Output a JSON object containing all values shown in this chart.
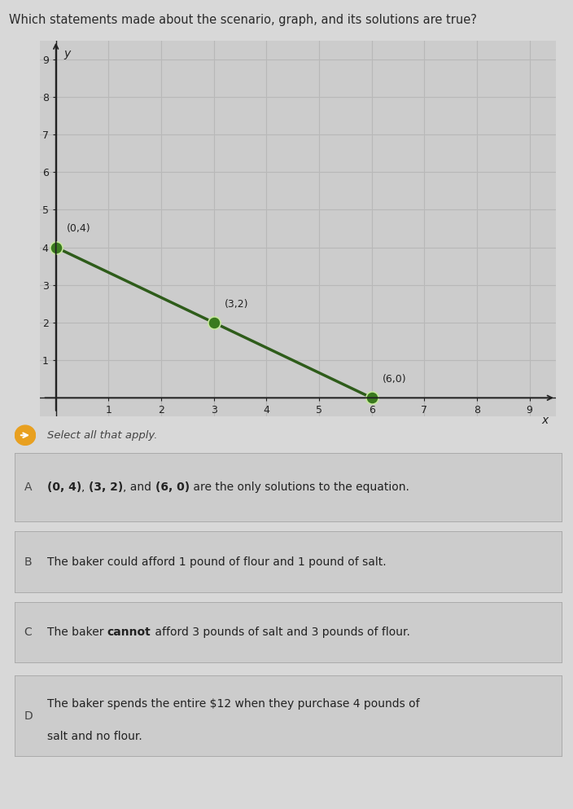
{
  "title": "Which statements made about the scenario, graph, and its solutions are true?",
  "title_fontsize": 10.5,
  "title_color": "#2a2a2a",
  "background_color": "#d8d8d8",
  "plot_area_color": "#cccccc",
  "grid_color": "#b8b8b8",
  "line_points": [
    [
      0,
      4
    ],
    [
      6,
      0
    ]
  ],
  "highlighted_points": [
    [
      0,
      4
    ],
    [
      3,
      2
    ],
    [
      6,
      0
    ]
  ],
  "point_labels": [
    "(0,4)",
    "(3,2)",
    "(6,0)"
  ],
  "line_color": "#2e5c1a",
  "point_color": "#3a7a1e",
  "xmin": -0.3,
  "xmax": 9.5,
  "ymin": -0.5,
  "ymax": 9.5,
  "xticks": [
    1,
    2,
    3,
    4,
    5,
    6,
    7,
    8,
    9
  ],
  "yticks": [
    1,
    2,
    3,
    4,
    5,
    6,
    7,
    8,
    9
  ],
  "xlabel": "x",
  "ylabel": "y",
  "select_text": "Select all that apply.",
  "select_icon_color": "#e8a020",
  "options": [
    {
      "label": "A",
      "parts": [
        {
          "text": "(0, 4)",
          "bold": true
        },
        {
          "text": ", ",
          "bold": false
        },
        {
          "text": "(3, 2)",
          "bold": true
        },
        {
          "text": ", and ",
          "bold": false
        },
        {
          "text": "(6, 0)",
          "bold": true
        },
        {
          "text": " are the only solutions to the equation.",
          "bold": false
        }
      ],
      "multiline": false
    },
    {
      "label": "B",
      "parts": [
        {
          "text": "The baker could afford 1 pound of flour and 1 pound of salt.",
          "bold": false
        }
      ],
      "multiline": false
    },
    {
      "label": "C",
      "parts": [
        {
          "text": "The baker ",
          "bold": false
        },
        {
          "text": "cannot",
          "bold": true
        },
        {
          "text": " afford 3 pounds of salt and 3 pounds of flour.",
          "bold": false
        }
      ],
      "multiline": false
    },
    {
      "label": "D",
      "parts": [
        {
          "text": "The baker spends the entire $12 when they purchase 4 pounds of\nsalt and no flour.",
          "bold": false
        }
      ],
      "multiline": true
    }
  ],
  "option_bg_color": "#cccccc",
  "option_border_color": "#aaaaaa",
  "option_text_color": "#222222",
  "label_color": "#444444",
  "axis_color": "#222222",
  "tick_color": "#222222",
  "font_size_axis": 9,
  "font_size_point_label": 9,
  "font_size_option": 10
}
